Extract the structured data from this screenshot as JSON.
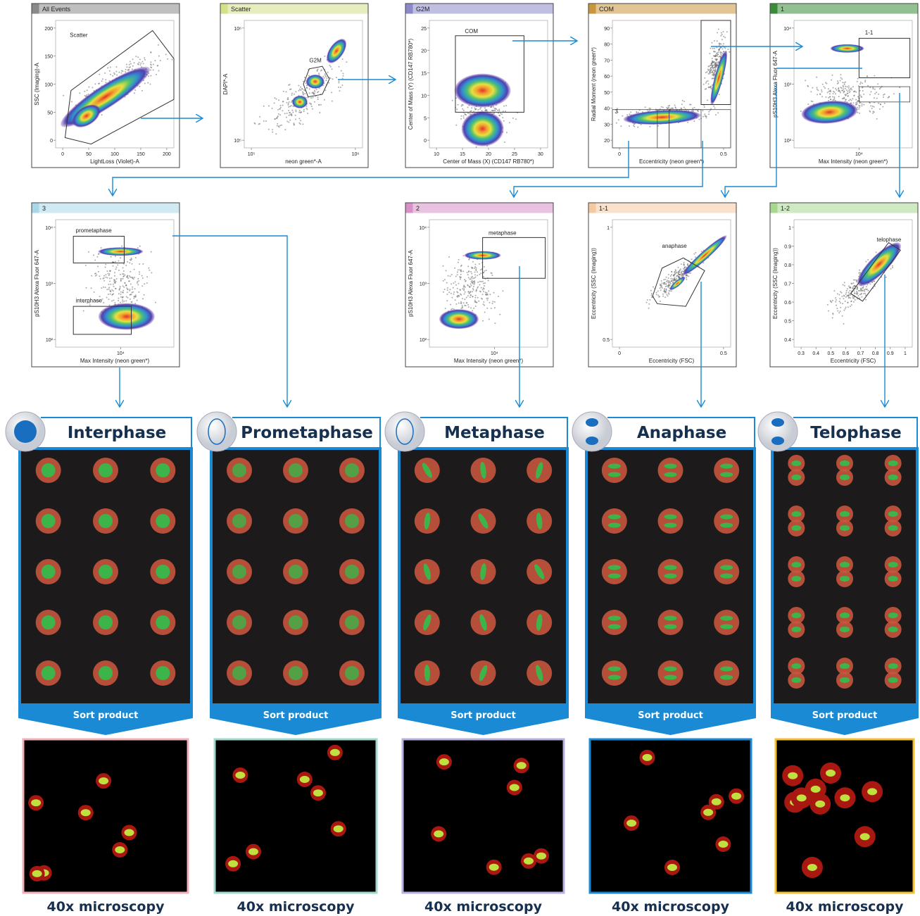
{
  "plots": [
    {
      "header": "All Events",
      "y_label": "SSC (Imaging)-A",
      "x_label": "LightLoss (Violet)-A",
      "gates": [
        "Scatter"
      ],
      "x_ticks": [
        "0",
        "50",
        "100",
        "150",
        "200"
      ],
      "y_ticks": [
        "0",
        "50",
        "100",
        "150",
        "200"
      ]
    },
    {
      "header": "Scatter",
      "y_label": "DAPI*-A",
      "x_label": "neon green*-A",
      "gates": [
        "G2M"
      ],
      "x_ticks": [
        "10⁵",
        "10⁶"
      ],
      "y_ticks": [
        "10⁵",
        "10⁶"
      ]
    },
    {
      "header": "G2M",
      "y_label": "Center of Mass (Y) (CD147 RB780*)",
      "x_label": "Center of Mass (X) (CD147 RB780*)",
      "gates": [
        "COM"
      ],
      "x_ticks": [
        "10",
        "15",
        "20",
        "25",
        "30"
      ],
      "y_ticks": [
        "0",
        "5",
        "10",
        "15",
        "20",
        "25"
      ]
    },
    {
      "header": "COM",
      "y_label": "Radial Moment (neon green*)",
      "x_label": "Eccentricity (neon green*)",
      "gates": [
        "3"
      ],
      "x_ticks": [
        "0",
        "0.5"
      ],
      "y_ticks": [
        "20",
        "30",
        "40",
        "50",
        "60",
        "70",
        "80",
        "90"
      ]
    },
    {
      "header": "1",
      "y_label": "pS10H3 Alexa Fluor 647-A",
      "x_label": "Max Intensity (neon green*)",
      "gates": [
        "1-1"
      ],
      "x_ticks": [
        "10⁴"
      ],
      "y_ticks": [
        "10²",
        "10³",
        "10⁴"
      ]
    },
    {
      "header": "3",
      "y_label": "pS10H3 Alexa Fluor 647-A",
      "x_label": "Max Intensity (neon green*)",
      "gates": [
        "prometaphase",
        "interphase"
      ],
      "x_ticks": [
        "10⁴"
      ],
      "y_ticks": [
        "10²",
        "10³",
        "10⁴"
      ]
    },
    {
      "header": "2",
      "y_label": "pS10H3 Alexa Fluor 647-A",
      "x_label": "Max Intensity (neon green*)",
      "gates": [
        "metaphase"
      ],
      "x_ticks": [
        "10⁴"
      ],
      "y_ticks": [
        "10²",
        "10³",
        "10⁴"
      ]
    },
    {
      "header": "1-1",
      "y_label": "Eccentricity (SSC (Imaging))",
      "x_label": "Eccentricity (FSC)",
      "gates": [
        "anaphase"
      ],
      "x_ticks": [
        "0",
        "0.5"
      ],
      "y_ticks": [
        "0.5",
        "1"
      ]
    },
    {
      "header": "1-2",
      "y_label": "Eccentricity (SSC (Imaging))",
      "x_label": "Eccentricity (FSC)",
      "gates": [
        "telophase"
      ],
      "x_ticks": [
        "0.3",
        "0.4",
        "0.5",
        "0.6",
        "0.7",
        "0.8",
        "0.9",
        "1"
      ],
      "y_ticks": [
        "0.4",
        "0.5",
        "0.6",
        "0.7",
        "0.8",
        "0.9",
        "1"
      ]
    }
  ],
  "phases": [
    {
      "title": "Interphase",
      "sort_label": "Sort product",
      "caption": "40x microscopy"
    },
    {
      "title": "Prometaphase",
      "sort_label": "Sort product",
      "caption": "40x microscopy"
    },
    {
      "title": "Metaphase",
      "sort_label": "Sort product",
      "caption": "40x microscopy"
    },
    {
      "title": "Anaphase",
      "sort_label": "Sort product",
      "caption": "40x microscopy"
    },
    {
      "title": "Telophase",
      "sort_label": "Sort product",
      "caption": "40x microscopy"
    }
  ]
}
